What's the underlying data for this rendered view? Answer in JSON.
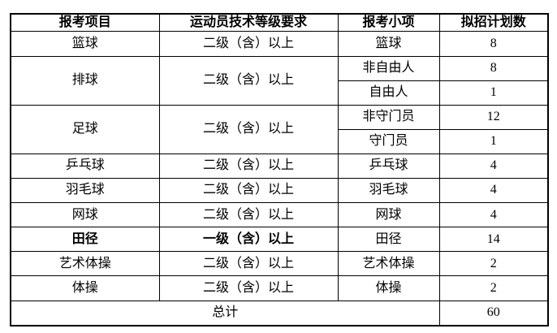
{
  "table": {
    "headers": [
      "报考项目",
      "运动员技术等级要求",
      "报考小项",
      "拟招计划数"
    ],
    "groups": [
      {
        "item": "篮球",
        "requirement": "二级（含）以上",
        "bold": false,
        "subs": [
          {
            "name": "篮球",
            "count": "8"
          }
        ]
      },
      {
        "item": "排球",
        "requirement": "二级（含）以上",
        "bold": false,
        "subs": [
          {
            "name": "非自由人",
            "count": "8"
          },
          {
            "name": "自由人",
            "count": "1"
          }
        ]
      },
      {
        "item": "足球",
        "requirement": "二级（含）以上",
        "bold": false,
        "subs": [
          {
            "name": "非守门员",
            "count": "12"
          },
          {
            "name": "守门员",
            "count": "1"
          }
        ]
      },
      {
        "item": "乒乓球",
        "requirement": "二级（含）以上",
        "bold": false,
        "subs": [
          {
            "name": "乒乓球",
            "count": "4"
          }
        ]
      },
      {
        "item": "羽毛球",
        "requirement": "二级（含）以上",
        "bold": false,
        "subs": [
          {
            "name": "羽毛球",
            "count": "4"
          }
        ]
      },
      {
        "item": "网球",
        "requirement": "二级（含）以上",
        "bold": false,
        "subs": [
          {
            "name": "网球",
            "count": "4"
          }
        ]
      },
      {
        "item": "田径",
        "requirement": "一级（含）以上",
        "bold": true,
        "subs": [
          {
            "name": "田径",
            "count": "14"
          }
        ]
      },
      {
        "item": "艺术体操",
        "requirement": "二级（含）以上",
        "bold": false,
        "subs": [
          {
            "name": "艺术体操",
            "count": "2"
          }
        ]
      },
      {
        "item": "体操",
        "requirement": "二级（含）以上",
        "bold": false,
        "subs": [
          {
            "name": "体操",
            "count": "2"
          }
        ]
      }
    ],
    "footer": {
      "label": "总计",
      "total": "60"
    },
    "colors": {
      "border": "#000000",
      "text": "#000000",
      "background": "#ffffff"
    }
  }
}
